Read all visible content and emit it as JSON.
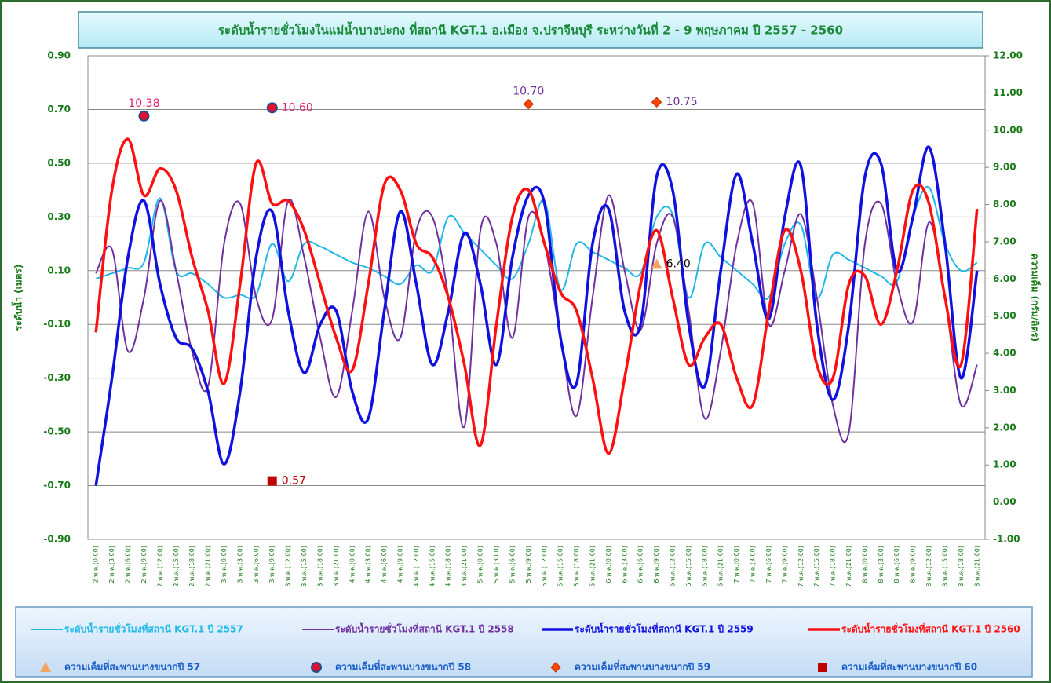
{
  "chart_data": {
    "type": "line",
    "title": "ระดับน้ำรายชั่วโมงในแม่น้ำบางปะกง ที่สถานี KGT.1 อ.เมือง จ.ปราจีนบุรี ระหว่างวันที่  2 - 9 พฤษภาคม ปี 2557 - 2560",
    "y_label": "ระดับน้ำ (เมตร)",
    "y2_label": "ความเค็ม (กรัม/ลิตร)",
    "categories": [
      "2 พ.ค.(0:00)",
      "2 พ.ค.(3:00)",
      "2 พ.ค.(6:00)",
      "2 พ.ค.(9:00)",
      "2 พ.ค.(12:00)",
      "2 พ.ค.(15:00)",
      "2 พ.ค.(18:00)",
      "2 พ.ค.(21:00)",
      "3 พ.ค.(0:00)",
      "3 พ.ค.(3:00)",
      "3 พ.ค.(6:00)",
      "3 พ.ค.(9:00)",
      "3 พ.ค.(12:00)",
      "3 พ.ค.(15:00)",
      "3 พ.ค.(18:00)",
      "3 พ.ค.(21:00)",
      "4 พ.ค.(0:00)",
      "4 พ.ค.(3:00)",
      "4 พ.ค.(6:00)",
      "4 พ.ค.(9:00)",
      "4 พ.ค.(12:00)",
      "4 พ.ค.(15:00)",
      "4 พ.ค.(18:00)",
      "4 พ.ค.(21:00)",
      "5 พ.ค.(0:00)",
      "5 พ.ค.(3:00)",
      "5 พ.ค.(6:00)",
      "5 พ.ค.(9:00)",
      "5 พ.ค.(12:00)",
      "5 พ.ค.(15:00)",
      "5 พ.ค.(18:00)",
      "5 พ.ค.(21:00)",
      "6 พ.ค.(0:00)",
      "6 พ.ค.(3:00)",
      "6 พ.ค.(6:00)",
      "6 พ.ค.(9:00)",
      "6 พ.ค.(12:00)",
      "6 พ.ค.(15:00)",
      "6 พ.ค.(18:00)",
      "6 พ.ค.(21:00)",
      "7 พ.ค.(0:00)",
      "7 พ.ค.(3:00)",
      "7 พ.ค.(6:00)",
      "7 พ.ค.(9:00)",
      "7 พ.ค.(12:00)",
      "7 พ.ค.(15:00)",
      "7 พ.ค.(18:00)",
      "7 พ.ค.(21:00)",
      "8 พ.ค.(0:00)",
      "8 พ.ค.(3:00)",
      "8 พ.ค.(6:00)",
      "8 พ.ค.(9:00)",
      "8 พ.ค.(12:00)",
      "8 พ.ค.(15:00)",
      "8 พ.ค.(18:00)",
      "8 พ.ค.(21:00)"
    ],
    "series": [
      {
        "name": "ระดับน้ำรายชั่วโมงที่สถานี KGT.1  ปี 2557",
        "color": "#1fb8e8",
        "values": [
          0.07,
          0.09,
          0.11,
          0.13,
          0.37,
          0.1,
          0.09,
          0.05,
          0.0,
          0.01,
          0.01,
          0.2,
          0.06,
          0.2,
          0.19,
          0.16,
          0.13,
          0.11,
          0.08,
          0.05,
          0.12,
          0.1,
          0.3,
          0.24,
          0.18,
          0.12,
          0.07,
          0.2,
          0.36,
          0.03,
          0.2,
          0.17,
          0.14,
          0.11,
          0.09,
          0.3,
          0.31,
          0.0,
          0.2,
          0.15,
          0.1,
          0.05,
          0.0,
          0.2,
          0.27,
          0.0,
          0.16,
          0.14,
          0.11,
          0.08,
          0.06,
          0.3,
          0.41,
          0.2,
          0.1,
          0.13
        ]
      },
      {
        "name": "ระดับน้ำรายชั่วโมงที่สถานี KGT.1  ปี 2558",
        "color": "#7030a0",
        "values": [
          0.09,
          0.18,
          -0.2,
          0.0,
          0.36,
          0.1,
          -0.2,
          -0.33,
          0.2,
          0.35,
          0.0,
          -0.08,
          0.36,
          0.15,
          -0.15,
          -0.37,
          -0.05,
          0.32,
          0.0,
          -0.15,
          0.25,
          0.3,
          0.0,
          -0.48,
          0.25,
          0.2,
          -0.15,
          0.3,
          0.2,
          -0.15,
          -0.44,
          0.0,
          0.38,
          0.1,
          -0.12,
          0.2,
          0.3,
          -0.05,
          -0.45,
          -0.2,
          0.2,
          0.35,
          -0.1,
          0.1,
          0.31,
          0.0,
          -0.4,
          -0.5,
          0.2,
          0.35,
          0.05,
          -0.09,
          0.28,
          0.0,
          -0.4,
          -0.25
        ]
      },
      {
        "name": "ระดับน้ำรายชั่วโมงที่สถานี KGT.1 ปี 2559",
        "color": "#1010e0",
        "values": [
          -0.7,
          -0.3,
          0.15,
          0.36,
          0.05,
          -0.15,
          -0.19,
          -0.35,
          -0.62,
          -0.35,
          0.15,
          0.32,
          -0.05,
          -0.28,
          -0.1,
          -0.05,
          -0.35,
          -0.45,
          -0.05,
          0.32,
          0.05,
          -0.25,
          -0.05,
          0.24,
          0.05,
          -0.25,
          0.15,
          0.38,
          0.35,
          -0.15,
          -0.32,
          0.2,
          0.33,
          -0.05,
          -0.1,
          0.45,
          0.4,
          -0.1,
          -0.33,
          0.1,
          0.46,
          0.2,
          -0.08,
          0.3,
          0.49,
          -0.1,
          -0.38,
          -0.1,
          0.45,
          0.5,
          0.1,
          0.3,
          0.56,
          0.2,
          -0.3,
          0.1
        ]
      },
      {
        "name": "ระดับน้ำรายชั่วโมงที่สถานี KGT.1 ปี 2560",
        "color": "#ff1010",
        "values": [
          -0.13,
          0.4,
          0.59,
          0.38,
          0.48,
          0.4,
          0.15,
          -0.05,
          -0.32,
          0.05,
          0.5,
          0.35,
          0.36,
          0.25,
          0.05,
          -0.15,
          -0.27,
          0.05,
          0.42,
          0.4,
          0.2,
          0.15,
          0.0,
          -0.25,
          -0.55,
          -0.1,
          0.3,
          0.4,
          0.2,
          0.02,
          -0.05,
          -0.3,
          -0.58,
          -0.3,
          0.05,
          0.25,
          0.0,
          -0.25,
          -0.15,
          -0.1,
          -0.3,
          -0.4,
          -0.05,
          0.25,
          0.1,
          -0.25,
          -0.3,
          0.05,
          0.08,
          -0.1,
          0.1,
          0.4,
          0.35,
          0.0,
          -0.25,
          0.33
        ]
      },
      {
        "name": "ความเค็มที่สะพานบางขนากปี 57",
        "color": "#f4a460",
        "marker": "triangle",
        "axis": "y2",
        "x": [
          "6 พ.ค.(9:00)"
        ],
        "values": [
          6.4
        ],
        "value_labels": [
          "6.40"
        ],
        "label_color": "#000000",
        "label_positions": [
          "right"
        ]
      },
      {
        "name": "ความเค็มที่สะพานบางขนากปี 58",
        "color": "#e01030",
        "marker": "circle",
        "axis": "y2",
        "x": [
          "2 พ.ค.(9:00)",
          "3 พ.ค.(9:00)"
        ],
        "values": [
          10.38,
          10.6
        ],
        "value_labels": [
          "10.38",
          "10.60"
        ],
        "label_color": "#e0206e",
        "label_positions": [
          "above",
          "right"
        ]
      },
      {
        "name": "ความเค็มที่สะพานบางขนากปี 59",
        "color": "#ff4500",
        "marker": "diamond",
        "axis": "y2",
        "x": [
          "5 พ.ค.(9:00)",
          "6 พ.ค.(9:00)"
        ],
        "values": [
          10.7,
          10.75
        ],
        "value_labels": [
          "10.70",
          "10.75"
        ],
        "label_color": "#7030a0",
        "label_positions": [
          "above",
          "right"
        ]
      },
      {
        "name": "ความเค็มที่สะพานบางขนากปี 60",
        "color": "#c00000",
        "marker": "square",
        "axis": "y2",
        "x": [
          "3 พ.ค.(9:00)"
        ],
        "values": [
          0.57
        ],
        "value_labels": [
          "0.57"
        ],
        "label_color": "#c00000",
        "label_positions": [
          "right"
        ]
      }
    ],
    "ylim": [
      -0.9,
      0.9
    ],
    "yticks": [
      {
        "value": -0.9,
        "label": "-0.90"
      },
      {
        "value": -0.7,
        "label": "-0.70"
      },
      {
        "value": -0.5,
        "label": "-0.50"
      },
      {
        "value": -0.3,
        "label": "-0.30"
      },
      {
        "value": -0.1,
        "label": "-0.10"
      },
      {
        "value": 0.1,
        "label": "0.10"
      },
      {
        "value": 0.3,
        "label": "0.30"
      },
      {
        "value": 0.5,
        "label": "0.50"
      },
      {
        "value": 0.7,
        "label": "0.70"
      },
      {
        "value": 0.9,
        "label": "0.90"
      }
    ],
    "y2lim": [
      -1,
      12
    ],
    "y2ticks": [
      {
        "value": -1,
        "label": "-1.00"
      },
      {
        "value": 0,
        "label": "0.00"
      },
      {
        "value": 1,
        "label": "1.00"
      },
      {
        "value": 2,
        "label": "2.00"
      },
      {
        "value": 3,
        "label": "3.00"
      },
      {
        "value": 4,
        "label": "4.00"
      },
      {
        "value": 5,
        "label": "5.00"
      },
      {
        "value": 6,
        "label": "6.00"
      },
      {
        "value": 7,
        "label": "7.00"
      },
      {
        "value": 8,
        "label": "8.00"
      },
      {
        "value": 9,
        "label": "9.00"
      },
      {
        "value": 10,
        "label": "10.00"
      },
      {
        "value": 11,
        "label": "11.00"
      },
      {
        "value": 12,
        "label": "12.00"
      }
    ],
    "grid": true
  }
}
